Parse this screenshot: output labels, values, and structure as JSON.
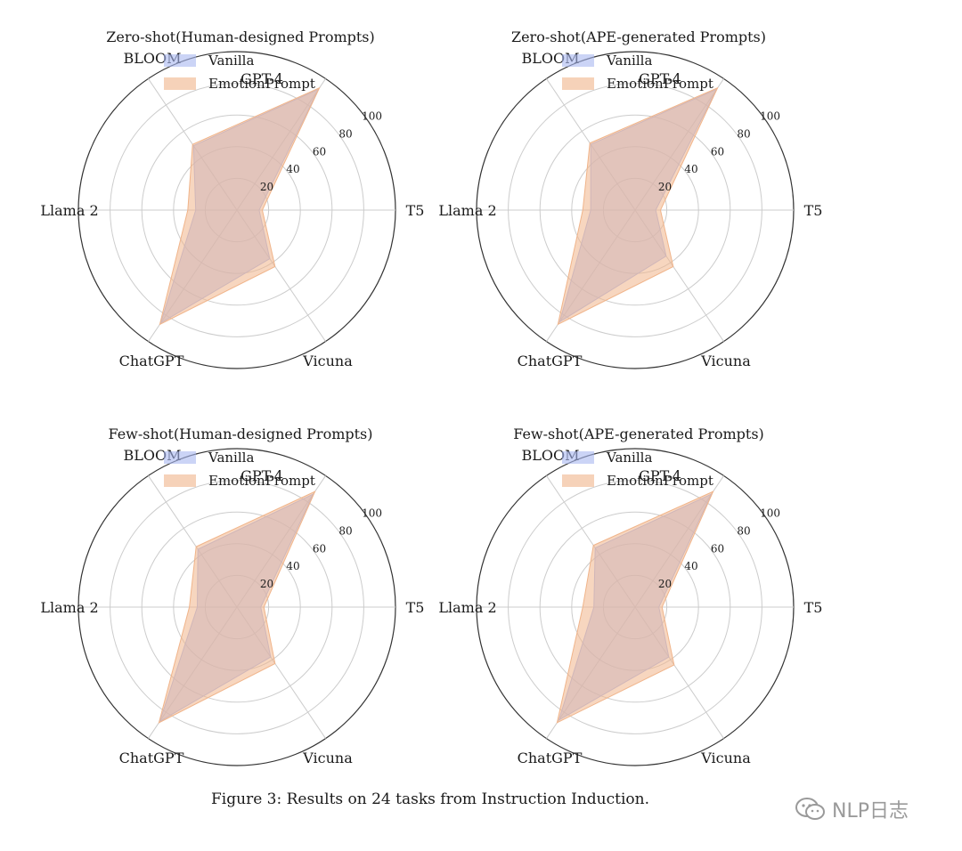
{
  "chart_data": [
    {
      "type": "radar",
      "title": "Zero-shot(Human-designed Prompts)",
      "axes": [
        "GPT-4",
        "T5",
        "Vicuna",
        "ChatGPT",
        "Llama 2",
        "BLOOM"
      ],
      "rticks": [
        20,
        40,
        60,
        80,
        100
      ],
      "rlim": [
        0,
        100
      ],
      "series": [
        {
          "name": "Vanilla",
          "values": [
            92,
            14,
            37,
            86,
            26,
            49
          ]
        },
        {
          "name": "EmotionPrompt",
          "values": [
            93,
            16,
            43,
            87,
            31,
            50
          ]
        }
      ]
    },
    {
      "type": "radar",
      "title": "Zero-shot(APE-generated Prompts)",
      "axes": [
        "GPT-4",
        "T5",
        "Vicuna",
        "ChatGPT",
        "Llama 2",
        "BLOOM"
      ],
      "rticks": [
        20,
        40,
        60,
        80,
        100
      ],
      "rlim": [
        0,
        100
      ],
      "series": [
        {
          "name": "Vanilla",
          "values": [
            92,
            13,
            35,
            85,
            28,
            50
          ]
        },
        {
          "name": "EmotionPrompt",
          "values": [
            93,
            16,
            43,
            87,
            33,
            51
          ]
        }
      ]
    },
    {
      "type": "radar",
      "title": "Few-shot(Human-designed Prompts)",
      "axes": [
        "GPT-4",
        "T5",
        "Vicuna",
        "ChatGPT",
        "Llama 2",
        "BLOOM"
      ],
      "rticks": [
        20,
        40,
        60,
        80,
        100
      ],
      "rlim": [
        0,
        100
      ],
      "series": [
        {
          "name": "Vanilla",
          "values": [
            86,
            15,
            38,
            87,
            25,
            44
          ]
        },
        {
          "name": "EmotionPrompt",
          "values": [
            88,
            17,
            43,
            88,
            30,
            46
          ]
        }
      ]
    },
    {
      "type": "radar",
      "title": "Few-shot(APE-generated Prompts)",
      "axes": [
        "GPT-4",
        "T5",
        "Vicuna",
        "ChatGPT",
        "Llama 2",
        "BLOOM"
      ],
      "rticks": [
        20,
        40,
        60,
        80,
        100
      ],
      "rlim": [
        0,
        100
      ],
      "series": [
        {
          "name": "Vanilla",
          "values": [
            86,
            15,
            38,
            86,
            26,
            45
          ]
        },
        {
          "name": "EmotionPrompt",
          "values": [
            88,
            17,
            44,
            88,
            33,
            47
          ]
        }
      ]
    }
  ],
  "colors": {
    "Vanilla": "#a9b8f0",
    "EmotionPrompt": "#f0b48a",
    "grid": "#cccccc",
    "outer": "#333333"
  },
  "caption": "Figure 3: Results on 24 tasks from Instruction Induction.",
  "watermark": {
    "text": "NLP日志",
    "icon": "wechat-icon"
  }
}
